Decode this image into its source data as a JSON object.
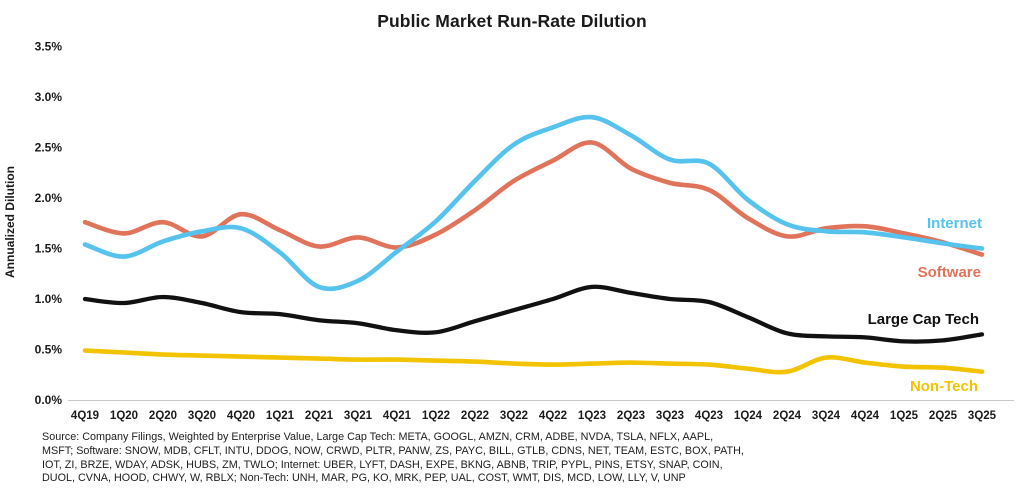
{
  "title": "Public Market Run-Rate Dilution",
  "y_axis": {
    "label": "Annualized Dilution",
    "ticks": [
      "3.5%",
      "3.0%",
      "2.5%",
      "2.0%",
      "1.5%",
      "1.0%",
      "0.5%",
      "0.0%"
    ]
  },
  "chart_data": {
    "type": "line",
    "title": "Public Market Run-Rate Dilution",
    "xlabel": "",
    "ylabel": "Annualized Dilution",
    "ylim": [
      0,
      3.5
    ],
    "ytick_step": 0.5,
    "grid": false,
    "legend_position": "direct-labels-right",
    "categories": [
      "4Q19",
      "1Q20",
      "2Q20",
      "3Q20",
      "4Q20",
      "1Q21",
      "2Q21",
      "3Q21",
      "4Q21",
      "1Q22",
      "2Q22",
      "3Q22",
      "4Q22",
      "1Q23",
      "2Q23",
      "3Q23",
      "4Q23",
      "1Q24",
      "2Q24",
      "3Q24",
      "4Q24",
      "1Q25",
      "2Q25",
      "3Q25"
    ],
    "series": [
      {
        "name": "Internet",
        "color": "#56C2EE",
        "values": [
          1.54,
          1.42,
          1.57,
          1.67,
          1.7,
          1.46,
          1.12,
          1.18,
          1.47,
          1.77,
          2.17,
          2.53,
          2.7,
          2.8,
          2.62,
          2.38,
          2.34,
          1.98,
          1.74,
          1.67,
          1.66,
          1.61,
          1.55,
          1.5
        ]
      },
      {
        "name": "Software",
        "color": "#E0735A",
        "values": [
          1.76,
          1.65,
          1.76,
          1.62,
          1.84,
          1.68,
          1.52,
          1.61,
          1.51,
          1.64,
          1.88,
          2.17,
          2.37,
          2.55,
          2.29,
          2.15,
          2.08,
          1.8,
          1.62,
          1.7,
          1.72,
          1.65,
          1.56,
          1.44
        ]
      },
      {
        "name": "Large Cap Tech",
        "color": "#111111",
        "values": [
          1.0,
          0.96,
          1.02,
          0.96,
          0.87,
          0.85,
          0.79,
          0.76,
          0.69,
          0.67,
          0.78,
          0.89,
          1.0,
          1.12,
          1.06,
          1.0,
          0.97,
          0.82,
          0.66,
          0.63,
          0.62,
          0.58,
          0.59,
          0.65
        ]
      },
      {
        "name": "Non-Tech",
        "color": "#F2C300",
        "values": [
          0.49,
          0.47,
          0.45,
          0.44,
          0.43,
          0.42,
          0.41,
          0.4,
          0.4,
          0.39,
          0.38,
          0.36,
          0.35,
          0.36,
          0.37,
          0.36,
          0.35,
          0.31,
          0.28,
          0.42,
          0.37,
          0.33,
          0.32,
          0.28
        ]
      }
    ]
  },
  "footer": {
    "lines": [
      "Source: Company Filings, Weighted by Enterprise Value, Large Cap Tech: META, GOOGL, AMZN, CRM, ADBE, NVDA, TSLA, NFLX, AAPL,",
      "MSFT; Software: SNOW, MDB, CFLT, INTU, DDOG, NOW, CRWD, PLTR, PANW, ZS, PAYC, BILL, GTLB, CDNS, NET, TEAM, ESTC, BOX, PATH,",
      "IOT, ZI, BRZE, WDAY, ADSK, HUBS, ZM, TWLO; Internet: UBER, LYFT, DASH, EXPE, BKNG, ABNB, TRIP, PYPL, PINS, ETSY, SNAP, COIN,",
      "DUOL, CVNA, HOOD, CHWY, W, RBLX; Non-Tech: UNH, MAR, PG, KO, MRK, PEP, UAL, COST, WMT, DIS, MCD, LOW, LLY, V, UNP"
    ]
  }
}
